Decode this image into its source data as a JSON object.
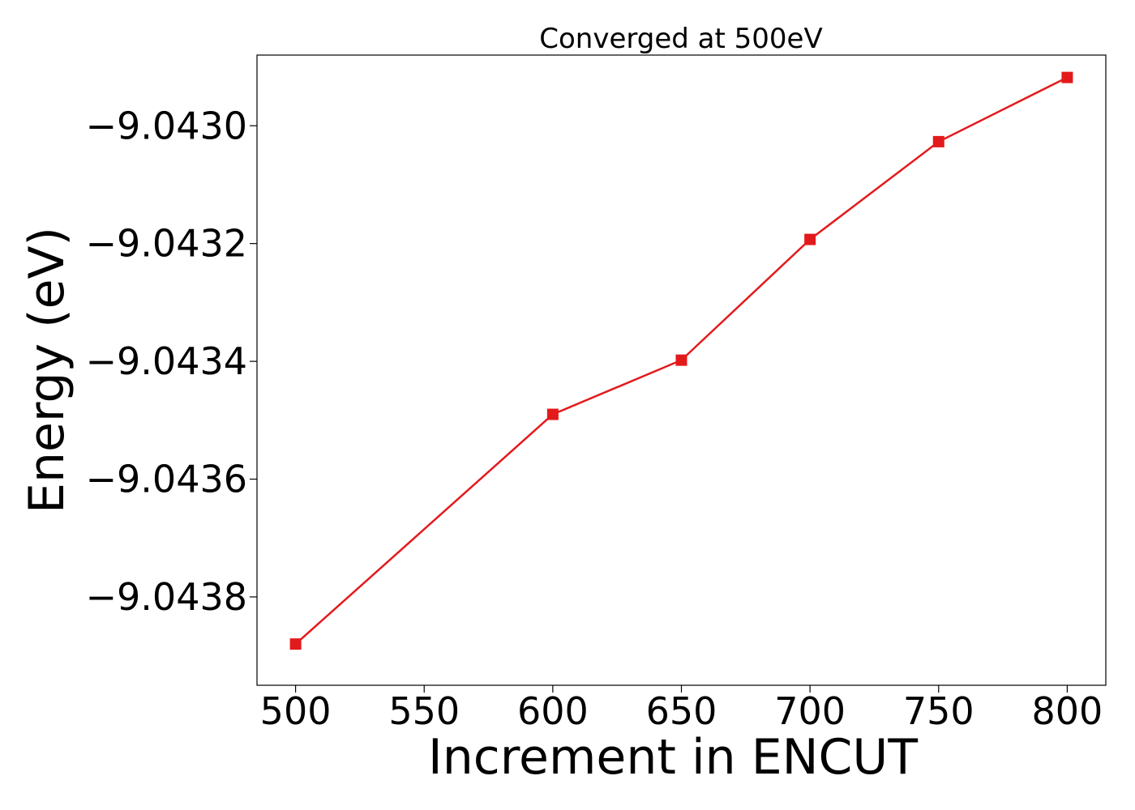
{
  "chart_data": {
    "type": "line",
    "title": "Converged at 500eV",
    "xlabel": "Increment in ENCUT",
    "ylabel": "Energy (eV)",
    "x": [
      500,
      600,
      650,
      700,
      750,
      800
    ],
    "series": [
      {
        "values": [
          -9.04388,
          -9.04349,
          -9.043398,
          -9.043193,
          -9.043027,
          -9.042918
        ],
        "color": "#e31a1c",
        "marker": "square"
      }
    ],
    "xticks": [
      500,
      550,
      600,
      650,
      700,
      750,
      800
    ],
    "xtick_labels": [
      "500",
      "550",
      "600",
      "650",
      "700",
      "750",
      "800"
    ],
    "yticks": [
      -9.0438,
      -9.0436,
      -9.0434,
      -9.0432,
      -9.043
    ],
    "ytick_labels": [
      "−9.0438",
      "−9.0436",
      "−9.0434",
      "−9.0432",
      "−9.0430"
    ],
    "xlim": [
      485,
      815
    ],
    "ylim": [
      -9.04395,
      -9.04288
    ],
    "grid": false,
    "legend": "none"
  }
}
